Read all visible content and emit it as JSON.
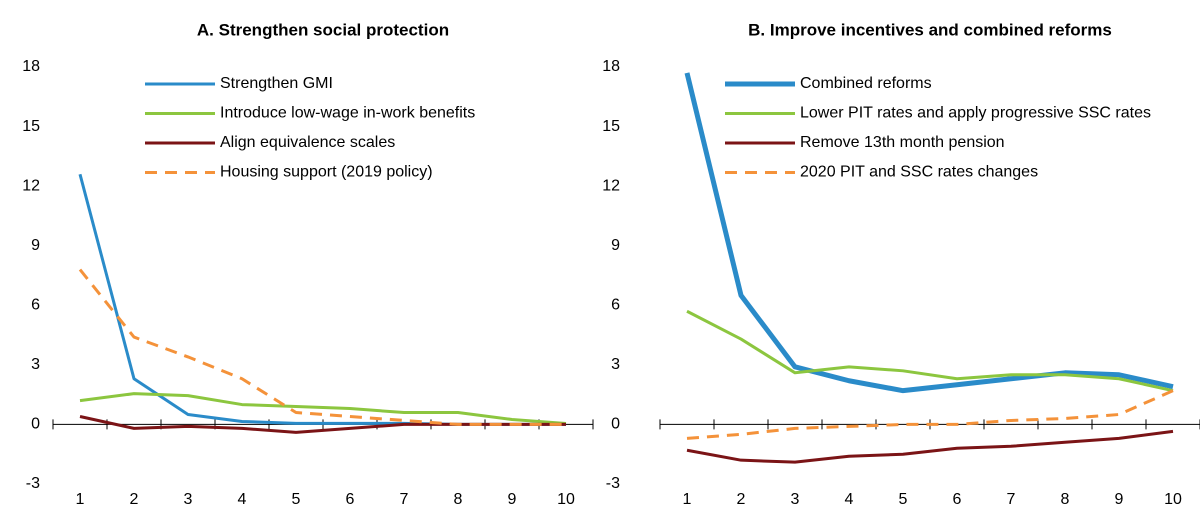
{
  "chart_data": [
    {
      "type": "line",
      "title": "A. Strengthen social protection",
      "categories": [
        "1",
        "2",
        "3",
        "4",
        "5",
        "6",
        "7",
        "8",
        "9",
        "10"
      ],
      "ylim": [
        -3,
        18
      ],
      "yticks": [
        -3,
        0,
        3,
        6,
        9,
        12,
        15,
        18
      ],
      "series": [
        {
          "name": "Strengthen GMI",
          "color": "#2a8bc9",
          "line_width": 3,
          "dashed": false,
          "values": [
            12.6,
            2.3,
            0.5,
            0.15,
            0.05,
            0.05,
            0.05,
            0.0,
            0.0,
            0.0
          ]
        },
        {
          "name": "Introduce low-wage in-work benefits",
          "color": "#8cc63f",
          "line_width": 3,
          "dashed": false,
          "values": [
            1.2,
            1.55,
            1.45,
            1.0,
            0.9,
            0.8,
            0.6,
            0.6,
            0.25,
            0.05
          ]
        },
        {
          "name": "Align equivalence scales",
          "color": "#7b1416",
          "line_width": 3,
          "dashed": false,
          "values": [
            0.4,
            -0.2,
            -0.1,
            -0.2,
            -0.4,
            -0.2,
            0.0,
            0.0,
            0.0,
            0.0
          ]
        },
        {
          "name": "Housing support (2019 policy)",
          "color": "#f4923a",
          "line_width": 3,
          "dashed": true,
          "values": [
            7.8,
            4.4,
            3.4,
            2.3,
            0.6,
            0.4,
            0.2,
            0.0,
            0.0,
            0.0
          ]
        }
      ]
    },
    {
      "type": "line",
      "title": "B. Improve incentives and combined reforms",
      "categories": [
        "1",
        "2",
        "3",
        "4",
        "5",
        "6",
        "7",
        "8",
        "9",
        "10"
      ],
      "ylim": [
        -3,
        18
      ],
      "yticks": [
        -3,
        0,
        3,
        6,
        9,
        12,
        15,
        18
      ],
      "series": [
        {
          "name": "Combined reforms",
          "color": "#2a8bc9",
          "line_width": 5,
          "dashed": false,
          "values": [
            17.7,
            6.5,
            2.9,
            2.2,
            1.7,
            2.0,
            2.3,
            2.6,
            2.5,
            1.9
          ]
        },
        {
          "name": "Lower PIT rates and apply progressive SSC rates",
          "color": "#8cc63f",
          "line_width": 3,
          "dashed": false,
          "values": [
            5.7,
            4.3,
            2.6,
            2.9,
            2.7,
            2.3,
            2.5,
            2.5,
            2.3,
            1.7
          ]
        },
        {
          "name": "Remove 13th month pension",
          "color": "#7b1416",
          "line_width": 3,
          "dashed": false,
          "values": [
            -1.3,
            -1.8,
            -1.9,
            -1.6,
            -1.5,
            -1.2,
            -1.1,
            -0.9,
            -0.7,
            -0.35
          ]
        },
        {
          "name": "2020 PIT and SSC rates changes",
          "color": "#f4923a",
          "line_width": 3,
          "dashed": true,
          "values": [
            -0.7,
            -0.5,
            -0.2,
            -0.1,
            0.0,
            0.0,
            0.2,
            0.3,
            0.5,
            1.7
          ]
        }
      ]
    }
  ]
}
